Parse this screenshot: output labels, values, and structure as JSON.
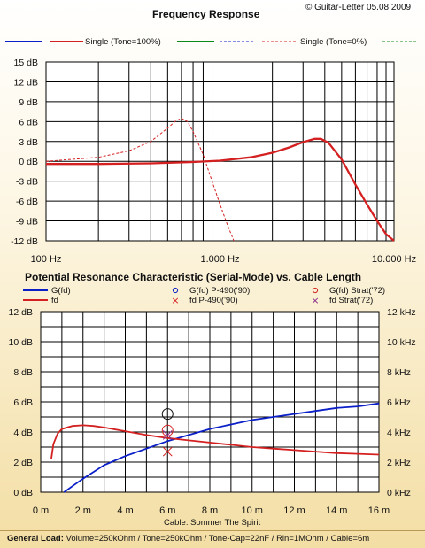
{
  "copyright": "© Guitar-Letter 05.08.2009",
  "footer": {
    "label": "General Load:",
    "text": "Volume=250kOhm / Tone=250kOhm / Tone-Cap=22nF / Rin=1MOhm / Cable=6m"
  },
  "colors": {
    "blue": "#0b1fc8",
    "red": "#d42020",
    "green": "#0b8a1a",
    "grid": "#000000",
    "plot_bg": "#ffffff"
  },
  "chart_data": [
    {
      "type": "line",
      "title": "Frequency Response",
      "legend": [
        "",
        "Single (Tone=100%)",
        "",
        "",
        "Single (Tone=0%)",
        ""
      ],
      "x_scale": "log",
      "xlim": [
        100,
        10000
      ],
      "ylim": [
        -12,
        15
      ],
      "x_ticks": [
        "100 Hz",
        "1.000 Hz",
        "10.000 Hz"
      ],
      "y_ticks": [
        "15 dB",
        "12 dB",
        "9 dB",
        "6 dB",
        "3 dB",
        "0 dB",
        "-3 dB",
        "-6 dB",
        "-9 dB",
        "-12 dB"
      ],
      "grid": true,
      "series": [
        {
          "name": "Single (Tone=100%)",
          "color": "#d42020",
          "style": "solid",
          "x": [
            100,
            200,
            400,
            700,
            1000,
            1500,
            2000,
            2500,
            3000,
            3500,
            3800,
            4200,
            5000,
            6000,
            7000,
            8000,
            9000,
            10000
          ],
          "y": [
            -0.4,
            -0.4,
            -0.3,
            -0.1,
            0.1,
            0.6,
            1.3,
            2.1,
            2.9,
            3.4,
            3.4,
            2.8,
            0.3,
            -3.5,
            -6.5,
            -9.0,
            -11.0,
            -12.0
          ]
        },
        {
          "name": "Single (Tone=0%)",
          "color": "#d42020",
          "style": "dashed",
          "x": [
            100,
            200,
            300,
            400,
            500,
            550,
            600,
            650,
            700,
            800,
            900,
            1000,
            1100,
            1200
          ],
          "y": [
            0.0,
            0.6,
            1.6,
            3.0,
            5.0,
            6.0,
            6.5,
            6.0,
            4.5,
            1.0,
            -3.0,
            -6.5,
            -9.5,
            -12.0
          ]
        }
      ]
    },
    {
      "type": "line",
      "title": "Potential Resonance Characteristic (Serial-Mode) vs. Cable Length",
      "legend": [
        "G(fd)",
        "fd",
        "G(fd) P-490('90)",
        "fd P-490('90)",
        "G(fd) Strat('72)",
        "fd Strat('72)"
      ],
      "xlabel": "Cable: Sommer The Spirit",
      "xlim": [
        0,
        16
      ],
      "ylim": [
        0,
        12
      ],
      "x_ticks": [
        "0 m",
        "2 m",
        "4 m",
        "6 m",
        "8 m",
        "10 m",
        "12 m",
        "14 m",
        "16 m"
      ],
      "y_ticks_left": [
        "12 dB",
        "10 dB",
        "8 dB",
        "6 dB",
        "4 dB",
        "2 dB",
        "0 dB"
      ],
      "y_ticks_right": [
        "12 kHz",
        "10 kHz",
        "8 kHz",
        "6 kHz",
        "4 kHz",
        "2 kHz",
        "0 kHz"
      ],
      "grid": true,
      "series": [
        {
          "name": "G(fd)",
          "color": "#0b1fc8",
          "x": [
            1.1,
            1.5,
            2,
            3,
            4,
            5,
            6,
            7,
            8,
            9,
            10,
            11,
            12,
            13,
            14,
            15,
            16
          ],
          "y": [
            0.0,
            0.4,
            0.9,
            1.8,
            2.4,
            2.9,
            3.4,
            3.8,
            4.2,
            4.5,
            4.8,
            5.0,
            5.2,
            5.4,
            5.6,
            5.7,
            5.9
          ]
        },
        {
          "name": "fd",
          "color": "#d42020",
          "x": [
            0.5,
            0.6,
            0.8,
            1,
            1.5,
            2,
            2.5,
            3,
            4,
            5,
            6,
            7,
            8,
            9,
            10,
            11,
            12,
            13,
            14,
            15,
            16
          ],
          "y": [
            2.2,
            3.2,
            3.9,
            4.2,
            4.4,
            4.45,
            4.4,
            4.3,
            4.05,
            3.8,
            3.6,
            3.45,
            3.3,
            3.15,
            3.0,
            2.9,
            2.8,
            2.7,
            2.6,
            2.55,
            2.5
          ]
        }
      ],
      "markers": [
        {
          "name": "G(fd) P-490('90)",
          "x": 6,
          "y": 5.2,
          "shape": "circle",
          "color": "#0b1fc8"
        },
        {
          "name": "fd P-490('90)",
          "x": 6,
          "y": 2.7,
          "shape": "x",
          "color": "#d42020"
        },
        {
          "name": "G(fd) Strat('72)",
          "x": 6,
          "y": 4.1,
          "shape": "circle",
          "color": "#d42020"
        },
        {
          "name": "fd Strat('72)",
          "x": 6,
          "y": 3.8,
          "shape": "x",
          "color": "#8a2a8a"
        }
      ]
    }
  ]
}
